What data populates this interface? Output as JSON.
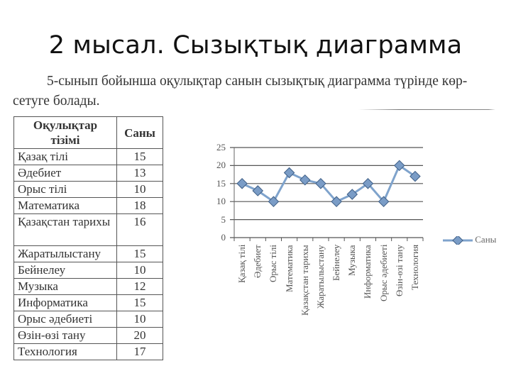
{
  "slide": {
    "title": "2 мысал. Сызықтық диаграмма"
  },
  "paragraph": {
    "line1": "5-сынып бойынша оқулықтар санын сызықтық диаграмма түрінде көр-",
    "line2": "сетуге болады."
  },
  "table": {
    "headers": [
      "Оқулықтар тізімі",
      "Саны"
    ],
    "rows": [
      {
        "name": "Қазақ тілі",
        "count": "15"
      },
      {
        "name": "Әдебиет",
        "count": "13"
      },
      {
        "name": "Орыс тілі",
        "count": "10"
      },
      {
        "name": "Математика",
        "count": "18"
      },
      {
        "name": "Қазақстан тарихы",
        "count": "16"
      },
      {
        "name": "Жаратылыстану",
        "count": "15"
      },
      {
        "name": "Бейнелеу",
        "count": "10"
      },
      {
        "name": "Музыка",
        "count": "12"
      },
      {
        "name": "Информатика",
        "count": "15"
      },
      {
        "name": "Орыс әдебиеті",
        "count": "10"
      },
      {
        "name": "Өзін-өзі тану",
        "count": "20"
      },
      {
        "name": "Технология",
        "count": "17"
      }
    ]
  },
  "chart_data": {
    "type": "line",
    "title": "",
    "xlabel": "",
    "ylabel": "",
    "categories": [
      "Қазақ тілі",
      "Әдебиет",
      "Орыс тілі",
      "Математика",
      "Қазақстан тарихы",
      "Жаратылыстану",
      "Бейнелеу",
      "Музыка",
      "Информатика",
      "Орыс әдебиеті",
      "Өзін-өзі тану",
      "Технология"
    ],
    "series": [
      {
        "name": "Саны",
        "values": [
          15,
          13,
          10,
          18,
          16,
          15,
          10,
          12,
          15,
          10,
          20,
          17
        ],
        "color": "#7a9cc6"
      }
    ],
    "yticks": [
      "0",
      "5",
      "10",
      "15",
      "20",
      "25"
    ],
    "ylim": [
      0,
      25
    ],
    "grid": true,
    "legend_position": "right"
  }
}
